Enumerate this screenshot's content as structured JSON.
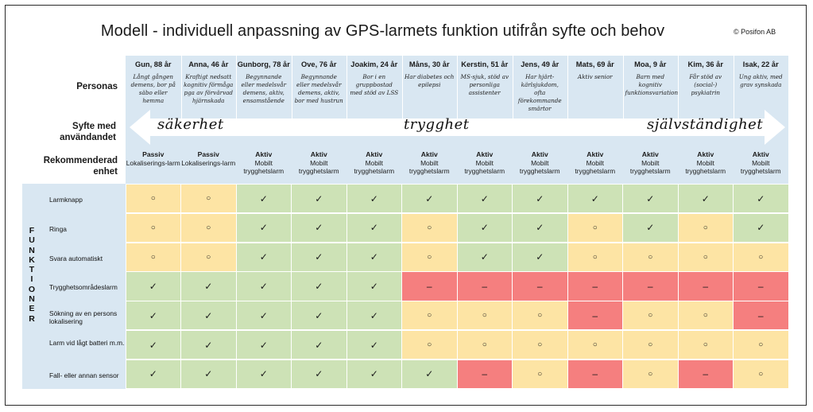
{
  "title": "Modell - individuell anpassning av GPS-larmets funktion utifrån syfte och behov",
  "copyright": "© Posifon AB",
  "row_labels": {
    "personas": "Personas",
    "purpose": "Syfte med användandet",
    "recommended": "Rekommenderad enhet"
  },
  "purpose_scale": {
    "left": "säkerhet",
    "middle": "trygghet",
    "right": "självständighet"
  },
  "functions_heading": "FUNKTIONER",
  "personas": [
    {
      "name": "Gun, 88 år",
      "desc": "Långt gången demens, bor på säbo eller hemma",
      "rec_type": "Passiv",
      "rec_unit": "Lokaliserings-larm"
    },
    {
      "name": "Anna, 46 år",
      "desc": "Kraftigt nedsatt kognitiv förmåga pga av förvärvad hjärnskada",
      "rec_type": "Passiv",
      "rec_unit": "Lokaliserings-larm"
    },
    {
      "name": "Gunborg, 78 år",
      "desc": "Begynnande eller medelsvår demens, aktiv, ensamstående",
      "rec_type": "Aktiv",
      "rec_unit": "Mobilt trygghetslarm"
    },
    {
      "name": "Ove, 76 år",
      "desc": "Begynnande eller medelsvår demens, aktiv, bor med hustrun",
      "rec_type": "Aktiv",
      "rec_unit": "Mobilt trygghetslarm"
    },
    {
      "name": "Joakim, 24 år",
      "desc": "Bor i en gruppbostad med stöd av LSS",
      "rec_type": "Aktiv",
      "rec_unit": "Mobilt trygghetslarm"
    },
    {
      "name": "Måns, 30 år",
      "desc": "Har diabetes och epilepsi",
      "rec_type": "Aktiv",
      "rec_unit": "Mobilt trygghetslarm"
    },
    {
      "name": "Kerstin, 51 år",
      "desc": "MS-sjuk, stöd av personliga assistenter",
      "rec_type": "Aktiv",
      "rec_unit": "Mobilt trygghetslarm"
    },
    {
      "name": "Jens, 49 år",
      "desc": "Har hjärt-kärlsjukdom, ofta förekommande smärtor",
      "rec_type": "Aktiv",
      "rec_unit": "Mobilt trygghetslarm"
    },
    {
      "name": "Mats, 69 år",
      "desc": "Aktiv senior",
      "rec_type": "Aktiv",
      "rec_unit": "Mobilt trygghetslarm"
    },
    {
      "name": "Moa, 9 år",
      "desc": "Barn med kognitiv funktionsvariation",
      "rec_type": "Aktiv",
      "rec_unit": "Mobilt trygghetslarm"
    },
    {
      "name": "Kim, 36 år",
      "desc": "Får stöd av (social-) psykiatrin",
      "rec_type": "Aktiv",
      "rec_unit": "Mobilt trygghetslarm"
    },
    {
      "name": "Isak, 22 år",
      "desc": "Ung aktiv, med grav synskada",
      "rec_type": "Aktiv",
      "rec_unit": "Mobilt trygghetslarm"
    }
  ],
  "symbols": {
    "yes": "✓",
    "maybe": "○",
    "no": "–"
  },
  "functions": [
    {
      "label": "Larmknapp",
      "cells": [
        "maybe",
        "maybe",
        "yes",
        "yes",
        "yes",
        "yes",
        "yes",
        "yes",
        "yes",
        "yes",
        "yes",
        "yes"
      ]
    },
    {
      "label": "Ringa",
      "cells": [
        "maybe",
        "maybe",
        "yes",
        "yes",
        "yes",
        "maybe",
        "yes",
        "yes",
        "maybe",
        "yes",
        "maybe",
        "yes"
      ]
    },
    {
      "label": "Svara automatiskt",
      "cells": [
        "maybe",
        "maybe",
        "yes",
        "yes",
        "yes",
        "maybe",
        "yes",
        "yes",
        "maybe",
        "maybe",
        "maybe",
        "maybe"
      ]
    },
    {
      "label": "Trygghetsområdeslarm",
      "cells": [
        "yes",
        "yes",
        "yes",
        "yes",
        "yes",
        "no",
        "no",
        "no",
        "no",
        "no",
        "no",
        "no"
      ]
    },
    {
      "label": "Sökning av en persons lokalisering",
      "cells": [
        "yes",
        "yes",
        "yes",
        "yes",
        "yes",
        "maybe",
        "maybe",
        "maybe",
        "no",
        "maybe",
        "maybe",
        "no"
      ]
    },
    {
      "label": "Larm vid lågt batteri m.m.",
      "cells": [
        "yes",
        "yes",
        "yes",
        "yes",
        "yes",
        "maybe",
        "maybe",
        "maybe",
        "maybe",
        "maybe",
        "maybe",
        "maybe"
      ]
    },
    {
      "label": "Fall- eller annan sensor",
      "cells": [
        "yes",
        "yes",
        "yes",
        "yes",
        "yes",
        "yes",
        "no",
        "maybe",
        "no",
        "maybe",
        "no",
        "maybe"
      ]
    }
  ],
  "colors": {
    "yes": "#cde2b6",
    "maybe": "#fde4a4",
    "no": "#f57f7f",
    "header": "#d9e7f2"
  }
}
